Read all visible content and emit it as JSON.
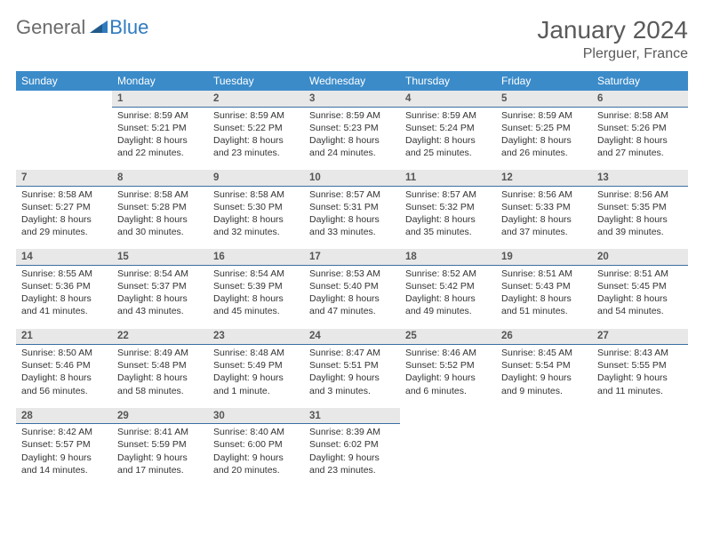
{
  "logo": {
    "general": "General",
    "blue": "Blue"
  },
  "title": "January 2024",
  "location": "Plerguer, France",
  "colors": {
    "header_bg": "#3b8bc9",
    "date_bg": "#e8e8e8",
    "date_border": "#3b6fa3",
    "logo_gray": "#6b6b6b",
    "logo_blue": "#2f7bbf"
  },
  "weekdays": [
    "Sunday",
    "Monday",
    "Tuesday",
    "Wednesday",
    "Thursday",
    "Friday",
    "Saturday"
  ],
  "weeks": [
    {
      "dates": [
        "",
        "1",
        "2",
        "3",
        "4",
        "5",
        "6"
      ],
      "cells": [
        {
          "empty": true
        },
        {
          "sunrise": "Sunrise: 8:59 AM",
          "sunset": "Sunset: 5:21 PM",
          "dl1": "Daylight: 8 hours",
          "dl2": "and 22 minutes."
        },
        {
          "sunrise": "Sunrise: 8:59 AM",
          "sunset": "Sunset: 5:22 PM",
          "dl1": "Daylight: 8 hours",
          "dl2": "and 23 minutes."
        },
        {
          "sunrise": "Sunrise: 8:59 AM",
          "sunset": "Sunset: 5:23 PM",
          "dl1": "Daylight: 8 hours",
          "dl2": "and 24 minutes."
        },
        {
          "sunrise": "Sunrise: 8:59 AM",
          "sunset": "Sunset: 5:24 PM",
          "dl1": "Daylight: 8 hours",
          "dl2": "and 25 minutes."
        },
        {
          "sunrise": "Sunrise: 8:59 AM",
          "sunset": "Sunset: 5:25 PM",
          "dl1": "Daylight: 8 hours",
          "dl2": "and 26 minutes."
        },
        {
          "sunrise": "Sunrise: 8:58 AM",
          "sunset": "Sunset: 5:26 PM",
          "dl1": "Daylight: 8 hours",
          "dl2": "and 27 minutes."
        }
      ]
    },
    {
      "dates": [
        "7",
        "8",
        "9",
        "10",
        "11",
        "12",
        "13"
      ],
      "cells": [
        {
          "sunrise": "Sunrise: 8:58 AM",
          "sunset": "Sunset: 5:27 PM",
          "dl1": "Daylight: 8 hours",
          "dl2": "and 29 minutes."
        },
        {
          "sunrise": "Sunrise: 8:58 AM",
          "sunset": "Sunset: 5:28 PM",
          "dl1": "Daylight: 8 hours",
          "dl2": "and 30 minutes."
        },
        {
          "sunrise": "Sunrise: 8:58 AM",
          "sunset": "Sunset: 5:30 PM",
          "dl1": "Daylight: 8 hours",
          "dl2": "and 32 minutes."
        },
        {
          "sunrise": "Sunrise: 8:57 AM",
          "sunset": "Sunset: 5:31 PM",
          "dl1": "Daylight: 8 hours",
          "dl2": "and 33 minutes."
        },
        {
          "sunrise": "Sunrise: 8:57 AM",
          "sunset": "Sunset: 5:32 PM",
          "dl1": "Daylight: 8 hours",
          "dl2": "and 35 minutes."
        },
        {
          "sunrise": "Sunrise: 8:56 AM",
          "sunset": "Sunset: 5:33 PM",
          "dl1": "Daylight: 8 hours",
          "dl2": "and 37 minutes."
        },
        {
          "sunrise": "Sunrise: 8:56 AM",
          "sunset": "Sunset: 5:35 PM",
          "dl1": "Daylight: 8 hours",
          "dl2": "and 39 minutes."
        }
      ]
    },
    {
      "dates": [
        "14",
        "15",
        "16",
        "17",
        "18",
        "19",
        "20"
      ],
      "cells": [
        {
          "sunrise": "Sunrise: 8:55 AM",
          "sunset": "Sunset: 5:36 PM",
          "dl1": "Daylight: 8 hours",
          "dl2": "and 41 minutes."
        },
        {
          "sunrise": "Sunrise: 8:54 AM",
          "sunset": "Sunset: 5:37 PM",
          "dl1": "Daylight: 8 hours",
          "dl2": "and 43 minutes."
        },
        {
          "sunrise": "Sunrise: 8:54 AM",
          "sunset": "Sunset: 5:39 PM",
          "dl1": "Daylight: 8 hours",
          "dl2": "and 45 minutes."
        },
        {
          "sunrise": "Sunrise: 8:53 AM",
          "sunset": "Sunset: 5:40 PM",
          "dl1": "Daylight: 8 hours",
          "dl2": "and 47 minutes."
        },
        {
          "sunrise": "Sunrise: 8:52 AM",
          "sunset": "Sunset: 5:42 PM",
          "dl1": "Daylight: 8 hours",
          "dl2": "and 49 minutes."
        },
        {
          "sunrise": "Sunrise: 8:51 AM",
          "sunset": "Sunset: 5:43 PM",
          "dl1": "Daylight: 8 hours",
          "dl2": "and 51 minutes."
        },
        {
          "sunrise": "Sunrise: 8:51 AM",
          "sunset": "Sunset: 5:45 PM",
          "dl1": "Daylight: 8 hours",
          "dl2": "and 54 minutes."
        }
      ]
    },
    {
      "dates": [
        "21",
        "22",
        "23",
        "24",
        "25",
        "26",
        "27"
      ],
      "cells": [
        {
          "sunrise": "Sunrise: 8:50 AM",
          "sunset": "Sunset: 5:46 PM",
          "dl1": "Daylight: 8 hours",
          "dl2": "and 56 minutes."
        },
        {
          "sunrise": "Sunrise: 8:49 AM",
          "sunset": "Sunset: 5:48 PM",
          "dl1": "Daylight: 8 hours",
          "dl2": "and 58 minutes."
        },
        {
          "sunrise": "Sunrise: 8:48 AM",
          "sunset": "Sunset: 5:49 PM",
          "dl1": "Daylight: 9 hours",
          "dl2": "and 1 minute."
        },
        {
          "sunrise": "Sunrise: 8:47 AM",
          "sunset": "Sunset: 5:51 PM",
          "dl1": "Daylight: 9 hours",
          "dl2": "and 3 minutes."
        },
        {
          "sunrise": "Sunrise: 8:46 AM",
          "sunset": "Sunset: 5:52 PM",
          "dl1": "Daylight: 9 hours",
          "dl2": "and 6 minutes."
        },
        {
          "sunrise": "Sunrise: 8:45 AM",
          "sunset": "Sunset: 5:54 PM",
          "dl1": "Daylight: 9 hours",
          "dl2": "and 9 minutes."
        },
        {
          "sunrise": "Sunrise: 8:43 AM",
          "sunset": "Sunset: 5:55 PM",
          "dl1": "Daylight: 9 hours",
          "dl2": "and 11 minutes."
        }
      ]
    },
    {
      "dates": [
        "28",
        "29",
        "30",
        "31",
        "",
        "",
        ""
      ],
      "cells": [
        {
          "sunrise": "Sunrise: 8:42 AM",
          "sunset": "Sunset: 5:57 PM",
          "dl1": "Daylight: 9 hours",
          "dl2": "and 14 minutes."
        },
        {
          "sunrise": "Sunrise: 8:41 AM",
          "sunset": "Sunset: 5:59 PM",
          "dl1": "Daylight: 9 hours",
          "dl2": "and 17 minutes."
        },
        {
          "sunrise": "Sunrise: 8:40 AM",
          "sunset": "Sunset: 6:00 PM",
          "dl1": "Daylight: 9 hours",
          "dl2": "and 20 minutes."
        },
        {
          "sunrise": "Sunrise: 8:39 AM",
          "sunset": "Sunset: 6:02 PM",
          "dl1": "Daylight: 9 hours",
          "dl2": "and 23 minutes."
        },
        {
          "empty": true
        },
        {
          "empty": true
        },
        {
          "empty": true
        }
      ]
    }
  ]
}
